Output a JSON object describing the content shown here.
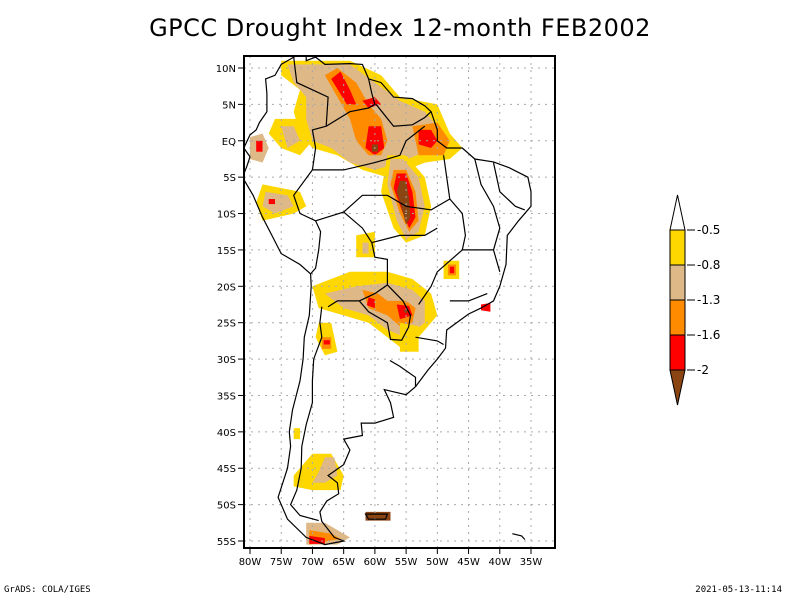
{
  "title": "GPCC Drought Index 12-month FEB2002",
  "footer": {
    "left": "GrADS: COLA/IGES",
    "right": "2021-05-13-11:14"
  },
  "map": {
    "region": "South America",
    "variable": "GPCC Drought Index",
    "period": "12-month",
    "date": "FEB2002",
    "lon_range": [
      -80,
      -35
    ],
    "lat_range": [
      -55,
      10
    ],
    "lat_ticks": [
      {
        "value": 10,
        "label": "10N"
      },
      {
        "value": 5,
        "label": "5N"
      },
      {
        "value": 0,
        "label": "EQ"
      },
      {
        "value": -5,
        "label": "5S"
      },
      {
        "value": -10,
        "label": "10S"
      },
      {
        "value": -15,
        "label": "15S"
      },
      {
        "value": -20,
        "label": "20S"
      },
      {
        "value": -25,
        "label": "25S"
      },
      {
        "value": -30,
        "label": "30S"
      },
      {
        "value": -35,
        "label": "35S"
      },
      {
        "value": -40,
        "label": "40S"
      },
      {
        "value": -45,
        "label": "45S"
      },
      {
        "value": -50,
        "label": "50S"
      },
      {
        "value": -55,
        "label": "55S"
      }
    ],
    "lon_ticks": [
      {
        "value": -80,
        "label": "80W"
      },
      {
        "value": -75,
        "label": "75W"
      },
      {
        "value": -70,
        "label": "70W"
      },
      {
        "value": -65,
        "label": "65W"
      },
      {
        "value": -60,
        "label": "60W"
      },
      {
        "value": -55,
        "label": "55W"
      },
      {
        "value": -50,
        "label": "50W"
      },
      {
        "value": -45,
        "label": "45W"
      },
      {
        "value": -40,
        "label": "40W"
      },
      {
        "value": -35,
        "label": "35W"
      }
    ],
    "grid": "dotted"
  },
  "legend": {
    "orientation": "vertical",
    "placement": "right",
    "levels": [
      {
        "label": "-0.5",
        "color": "#ffffff",
        "range": "> -0.5"
      },
      {
        "label": "-0.8",
        "color": "#ffd700",
        "range": "-0.8 to -0.5"
      },
      {
        "label": "-1.3",
        "color": "#deb887",
        "range": "-1.3 to -0.8"
      },
      {
        "label": "-1.6",
        "color": "#ff8c00",
        "range": "-1.6 to -1.3"
      },
      {
        "label": "-2",
        "color": "#ff0000",
        "range": "-2 to -1.6"
      },
      {
        "label": "",
        "color": "#8b4513",
        "range": "< -2"
      }
    ],
    "tick_labels": [
      "-0.5",
      "-0.8",
      "-1.3",
      "-1.6",
      "-2"
    ]
  },
  "drought_regions": [
    {
      "name": "northern-venezuela-guyana",
      "lon": -64,
      "lat": 6,
      "max_level": "-2"
    },
    {
      "name": "roraima-amazon",
      "lon": -60,
      "lat": 2,
      "max_level": "< -2"
    },
    {
      "name": "amapa-para-coast",
      "lon": -51,
      "lat": 0,
      "max_level": "-2"
    },
    {
      "name": "central-brazil-para-mato-grosso",
      "lon": -56,
      "lat": -8,
      "max_level": "< -2"
    },
    {
      "name": "ecuador-coast",
      "lon": -78,
      "lat": -0.5,
      "max_level": "-2"
    },
    {
      "name": "northern-peru",
      "lon": -77,
      "lat": -8,
      "max_level": "-2"
    },
    {
      "name": "paraguay-brazil-border",
      "lon": -55,
      "lat": -23,
      "max_level": "< -2"
    },
    {
      "name": "western-paraguay",
      "lon": -60,
      "lat": -22,
      "max_level": "-2"
    },
    {
      "name": "minas-gerais",
      "lon": -48,
      "lat": -18,
      "max_level": "-2"
    },
    {
      "name": "rio-coast",
      "lon": -42,
      "lat": -23,
      "max_level": "-2"
    },
    {
      "name": "northwest-argentina",
      "lon": -68,
      "lat": -28,
      "max_level": "-2"
    },
    {
      "name": "patagonia",
      "lon": -68,
      "lat": -45,
      "max_level": "-1.3"
    },
    {
      "name": "tierra-del-fuego",
      "lon": -68,
      "lat": -54,
      "max_level": "-2"
    },
    {
      "name": "falkland-islands",
      "lon": -59,
      "lat": -51.7,
      "max_level": "< -2"
    }
  ]
}
